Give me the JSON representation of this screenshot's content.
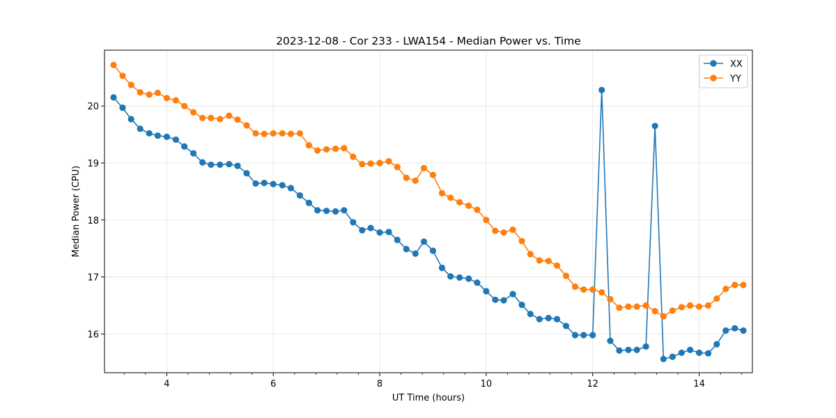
{
  "chart_data": {
    "type": "line",
    "title": "2023-12-08 - Cor 233 - LWA154 - Median Power vs. Time",
    "xlabel": "UT Time (hours)",
    "ylabel": "Median Power (CPU)",
    "xlim": [
      2.83,
      15.0
    ],
    "ylim": [
      15.32,
      20.98
    ],
    "xticks": [
      4,
      6,
      8,
      10,
      12,
      14
    ],
    "yticks": [
      16,
      17,
      18,
      19,
      20
    ],
    "grid": true,
    "legend_position": "top-right",
    "x": [
      3.0,
      3.17,
      3.33,
      3.5,
      3.67,
      3.83,
      4.0,
      4.17,
      4.33,
      4.5,
      4.67,
      4.83,
      5.0,
      5.17,
      5.33,
      5.5,
      5.67,
      5.83,
      6.0,
      6.17,
      6.33,
      6.5,
      6.67,
      6.83,
      7.0,
      7.17,
      7.33,
      7.5,
      7.67,
      7.83,
      8.0,
      8.17,
      8.33,
      8.5,
      8.67,
      8.83,
      9.0,
      9.17,
      9.33,
      9.5,
      9.67,
      9.83,
      10.0,
      10.17,
      10.33,
      10.5,
      10.67,
      10.83,
      11.0,
      11.17,
      11.33,
      11.5,
      11.67,
      11.83,
      12.0,
      12.17,
      12.33,
      12.5,
      12.67,
      12.83,
      13.0,
      13.17,
      13.33,
      13.5,
      13.67,
      13.83,
      14.0,
      14.17,
      14.33,
      14.5,
      14.67,
      14.83
    ],
    "series": [
      {
        "name": "XX",
        "color": "#1f77b4",
        "values": [
          20.15,
          19.97,
          19.77,
          19.6,
          19.52,
          19.48,
          19.46,
          19.41,
          19.29,
          19.17,
          19.01,
          18.97,
          18.97,
          18.98,
          18.95,
          18.82,
          18.64,
          18.65,
          18.63,
          18.61,
          18.56,
          18.43,
          18.3,
          18.17,
          18.16,
          18.15,
          18.17,
          17.96,
          17.82,
          17.86,
          17.78,
          17.79,
          17.65,
          17.49,
          17.41,
          17.62,
          17.46,
          17.16,
          17.01,
          16.99,
          16.97,
          16.9,
          16.75,
          16.6,
          16.59,
          16.7,
          16.51,
          16.35,
          16.26,
          16.28,
          16.26,
          16.14,
          15.98,
          15.98,
          15.98,
          20.28,
          15.88,
          15.71,
          15.72,
          15.72,
          15.78,
          19.65,
          15.56,
          15.6,
          15.67,
          15.72,
          15.67,
          15.66,
          15.82,
          16.06,
          16.1,
          16.06
        ]
      },
      {
        "name": "YY",
        "color": "#ff7f0e",
        "values": [
          20.72,
          20.53,
          20.37,
          20.24,
          20.2,
          20.23,
          20.14,
          20.1,
          20.0,
          19.89,
          19.79,
          19.79,
          19.77,
          19.83,
          19.76,
          19.66,
          19.52,
          19.51,
          19.52,
          19.52,
          19.51,
          19.52,
          19.31,
          19.22,
          19.24,
          19.25,
          19.26,
          19.11,
          18.98,
          18.99,
          19.0,
          19.03,
          18.93,
          18.74,
          18.69,
          18.91,
          18.79,
          18.47,
          18.39,
          18.31,
          18.25,
          18.18,
          18.0,
          17.81,
          17.78,
          17.83,
          17.63,
          17.4,
          17.29,
          17.28,
          17.2,
          17.02,
          16.83,
          16.78,
          16.78,
          16.73,
          16.61,
          16.46,
          16.48,
          16.48,
          16.5,
          16.4,
          16.31,
          16.41,
          16.47,
          16.5,
          16.48,
          16.5,
          16.62,
          16.79,
          16.86,
          16.86
        ]
      }
    ]
  }
}
